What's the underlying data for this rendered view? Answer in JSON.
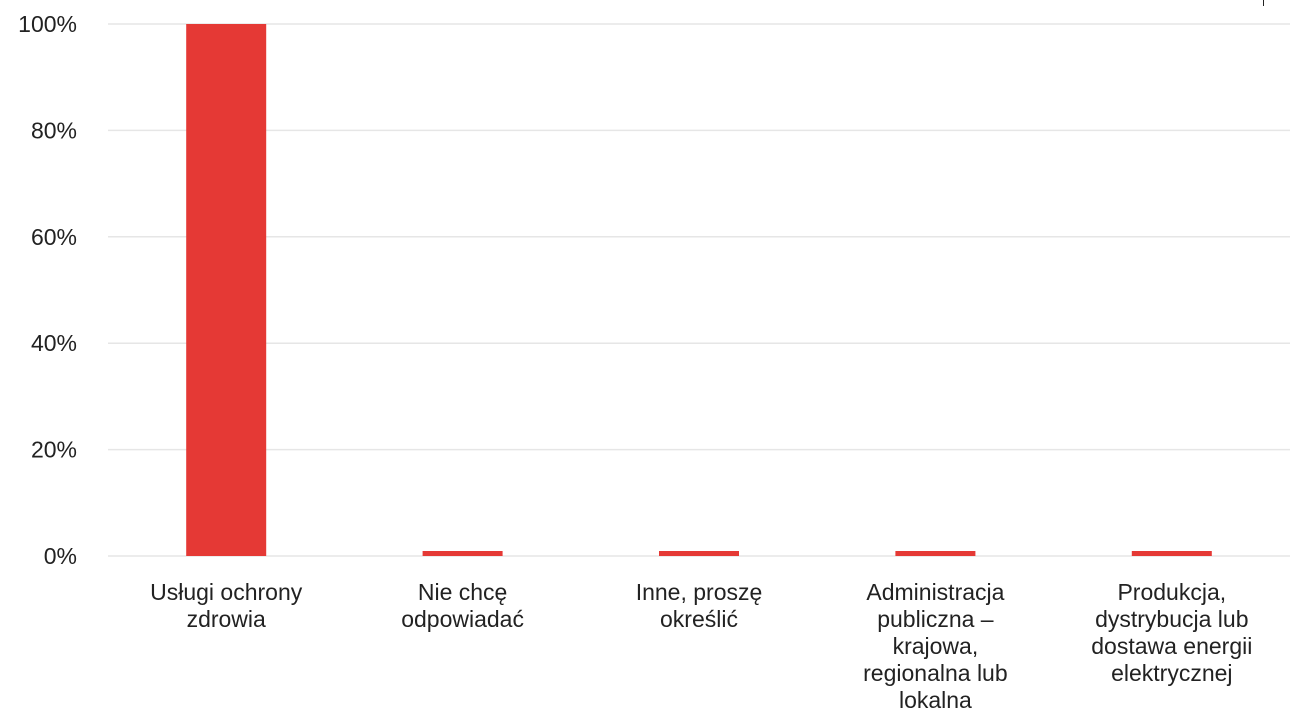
{
  "chart_data": {
    "type": "bar",
    "categories": [
      [
        "Usługi ochrony",
        "zdrowia"
      ],
      [
        "Nie chcę",
        "odpowiadać"
      ],
      [
        "Inne, proszę",
        "określić"
      ],
      [
        "Administracja",
        "publiczna –",
        "krajowa,",
        "regionalna lub",
        "lokalna"
      ],
      [
        "Produkcja,",
        "dystrybucja lub",
        "dostawa energii",
        "elektrycznej"
      ]
    ],
    "values": [
      100,
      0,
      0,
      0,
      0
    ],
    "y_ticks": [
      "0%",
      "20%",
      "40%",
      "60%",
      "80%",
      "100%"
    ],
    "ylim": [
      0,
      100
    ],
    "grid": true,
    "bar_color": "#e53935",
    "grid_color": "#e6e6e6",
    "title": "",
    "xlabel": "",
    "ylabel": ""
  }
}
